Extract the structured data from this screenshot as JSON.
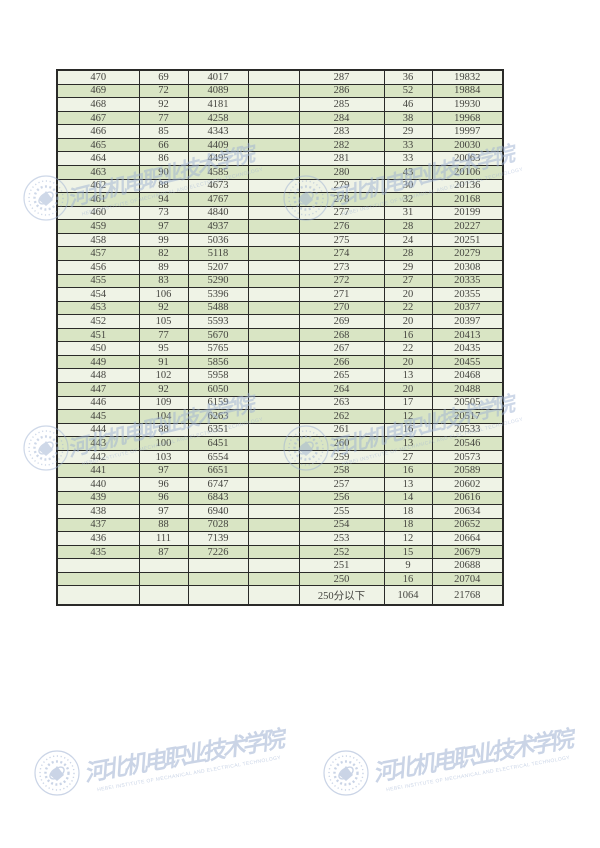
{
  "table": {
    "rows": [
      [
        "470",
        "69",
        "4017",
        "287",
        "36",
        "19832"
      ],
      [
        "469",
        "72",
        "4089",
        "286",
        "52",
        "19884"
      ],
      [
        "468",
        "92",
        "4181",
        "285",
        "46",
        "19930"
      ],
      [
        "467",
        "77",
        "4258",
        "284",
        "38",
        "19968"
      ],
      [
        "466",
        "85",
        "4343",
        "283",
        "29",
        "19997"
      ],
      [
        "465",
        "66",
        "4409",
        "282",
        "33",
        "20030"
      ],
      [
        "464",
        "86",
        "4495",
        "281",
        "33",
        "20063"
      ],
      [
        "463",
        "90",
        "4585",
        "280",
        "43",
        "20106"
      ],
      [
        "462",
        "88",
        "4673",
        "279",
        "30",
        "20136"
      ],
      [
        "461",
        "94",
        "4767",
        "278",
        "32",
        "20168"
      ],
      [
        "460",
        "73",
        "4840",
        "277",
        "31",
        "20199"
      ],
      [
        "459",
        "97",
        "4937",
        "276",
        "28",
        "20227"
      ],
      [
        "458",
        "99",
        "5036",
        "275",
        "24",
        "20251"
      ],
      [
        "457",
        "82",
        "5118",
        "274",
        "28",
        "20279"
      ],
      [
        "456",
        "89",
        "5207",
        "273",
        "29",
        "20308"
      ],
      [
        "455",
        "83",
        "5290",
        "272",
        "27",
        "20335"
      ],
      [
        "454",
        "106",
        "5396",
        "271",
        "20",
        "20355"
      ],
      [
        "453",
        "92",
        "5488",
        "270",
        "22",
        "20377"
      ],
      [
        "452",
        "105",
        "5593",
        "269",
        "20",
        "20397"
      ],
      [
        "451",
        "77",
        "5670",
        "268",
        "16",
        "20413"
      ],
      [
        "450",
        "95",
        "5765",
        "267",
        "22",
        "20435"
      ],
      [
        "449",
        "91",
        "5856",
        "266",
        "20",
        "20455"
      ],
      [
        "448",
        "102",
        "5958",
        "265",
        "13",
        "20468"
      ],
      [
        "447",
        "92",
        "6050",
        "264",
        "20",
        "20488"
      ],
      [
        "446",
        "109",
        "6159",
        "263",
        "17",
        "20505"
      ],
      [
        "445",
        "104",
        "6263",
        "262",
        "12",
        "20517"
      ],
      [
        "444",
        "88",
        "6351",
        "261",
        "16",
        "20533"
      ],
      [
        "443",
        "100",
        "6451",
        "260",
        "13",
        "20546"
      ],
      [
        "442",
        "103",
        "6554",
        "259",
        "27",
        "20573"
      ],
      [
        "441",
        "97",
        "6651",
        "258",
        "16",
        "20589"
      ],
      [
        "440",
        "96",
        "6747",
        "257",
        "13",
        "20602"
      ],
      [
        "439",
        "96",
        "6843",
        "256",
        "14",
        "20616"
      ],
      [
        "438",
        "97",
        "6940",
        "255",
        "18",
        "20634"
      ],
      [
        "437",
        "88",
        "7028",
        "254",
        "18",
        "20652"
      ],
      [
        "436",
        "111",
        "7139",
        "253",
        "12",
        "20664"
      ],
      [
        "435",
        "87",
        "7226",
        "252",
        "15",
        "20679"
      ],
      [
        "",
        "",
        "",
        "251",
        "9",
        "20688"
      ],
      [
        "",
        "",
        "",
        "250",
        "16",
        "20704"
      ],
      [
        "",
        "",
        "",
        "250分以下",
        "1064",
        "21768"
      ]
    ]
  },
  "watermark": {
    "cn_text": "河北机电职业技术学院",
    "en_text": "HEBEI INSTITUTE OF MECHANICAL AND ELECTRICAL TECHNOLOGY",
    "color": "#9fb2d3"
  },
  "colors": {
    "page_bg": "#ffffff",
    "row_light": "#eff3e6",
    "row_dark": "#d9e5c4",
    "border": "#2a2a28",
    "text": "#44443f"
  }
}
